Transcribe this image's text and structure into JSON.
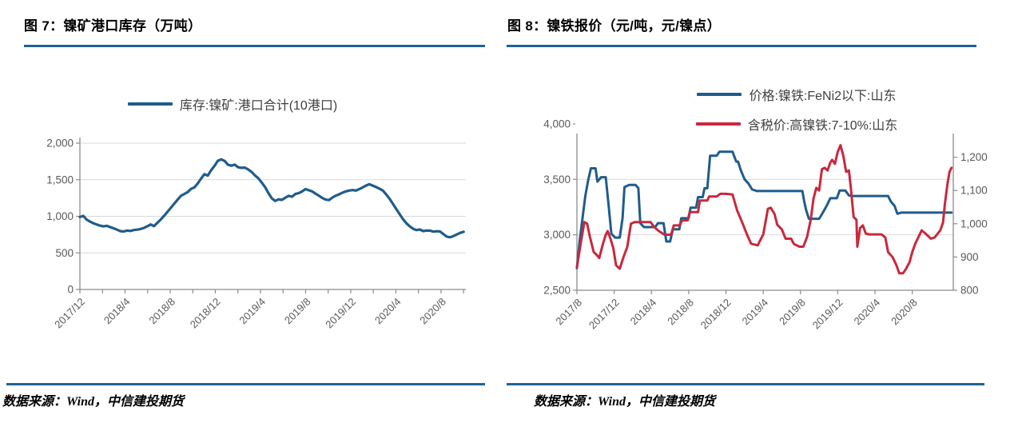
{
  "style": {
    "accent": "#1E6295",
    "grid": "#D9D9D9",
    "axis": "#8C8C8C",
    "tick_label_color": "#595959",
    "background": "#FFFFFF",
    "series_blue": "#1F5C8B",
    "series_red": "#C9283C"
  },
  "figures": [
    {
      "title": "图 7：镍矿港口库存（万吨）",
      "source": "数据来源：Wind，中信建投期货"
    },
    {
      "title": "图 8：镍铁报价（元/吨，元/镍点）",
      "source": "数据来源：Wind，中信建投期货"
    }
  ],
  "chart_data": [
    {
      "type": "line",
      "title": "镍矿港口库存（万吨）",
      "legend_position": "top-center",
      "grid": true,
      "xlim": [
        0,
        34.2
      ],
      "x_unit": "months since 2017/12",
      "x_ticks": [
        {
          "pos": 0,
          "label": "2017/12"
        },
        {
          "pos": 4,
          "label": "2018/4"
        },
        {
          "pos": 8,
          "label": "2018/8"
        },
        {
          "pos": 12,
          "label": "2018/12"
        },
        {
          "pos": 16,
          "label": "2019/4"
        },
        {
          "pos": 20,
          "label": "2019/8"
        },
        {
          "pos": 24,
          "label": "2019/12"
        },
        {
          "pos": 28,
          "label": "2020/4"
        },
        {
          "pos": 32,
          "label": "2020/8"
        }
      ],
      "x_minor_every": 2,
      "axes": {
        "left": {
          "lim": [
            0,
            2000
          ],
          "ticks": [
            0,
            500,
            1000,
            1500,
            2000
          ]
        }
      },
      "series": [
        {
          "name": "库存:镍矿:港口合计(10港口)",
          "id": "inventory-line",
          "color": "#1F5C8B",
          "width": 3.2,
          "axis": "left",
          "x_range": [
            0,
            34
          ],
          "y": [
            990,
            1005,
            955,
            928,
            905,
            888,
            872,
            862,
            870,
            852,
            836,
            818,
            798,
            792,
            806,
            800,
            812,
            818,
            826,
            840,
            862,
            888,
            866,
            910,
            955,
            1005,
            1060,
            1115,
            1170,
            1225,
            1280,
            1305,
            1330,
            1375,
            1395,
            1448,
            1515,
            1575,
            1556,
            1632,
            1690,
            1760,
            1778,
            1756,
            1705,
            1692,
            1706,
            1670,
            1662,
            1666,
            1640,
            1608,
            1560,
            1520,
            1462,
            1400,
            1318,
            1246,
            1210,
            1232,
            1224,
            1252,
            1280,
            1268,
            1305,
            1316,
            1340,
            1372,
            1356,
            1340,
            1310,
            1282,
            1250,
            1228,
            1222,
            1256,
            1282,
            1300,
            1322,
            1340,
            1352,
            1358,
            1352,
            1372,
            1395,
            1420,
            1438,
            1420,
            1400,
            1378,
            1352,
            1300,
            1240,
            1170,
            1100,
            1030,
            960,
            905,
            862,
            830,
            812,
            820,
            798,
            806,
            804,
            790,
            796,
            792,
            756,
            722,
            714,
            730,
            752,
            774,
            788
          ]
        }
      ]
    },
    {
      "type": "line",
      "title": "镍铁报价（元/吨，元/镍点）",
      "legend_position": "top-center",
      "grid": true,
      "xlim": [
        0,
        40.4
      ],
      "x_unit": "months since 2017/8",
      "x_ticks": [
        {
          "pos": 0,
          "label": "2017/8"
        },
        {
          "pos": 4,
          "label": "2017/12"
        },
        {
          "pos": 8,
          "label": "2018/4"
        },
        {
          "pos": 12,
          "label": "2018/8"
        },
        {
          "pos": 16,
          "label": "2018/12"
        },
        {
          "pos": 20,
          "label": "2019/4"
        },
        {
          "pos": 24,
          "label": "2019/8"
        },
        {
          "pos": 28,
          "label": "2019/12"
        },
        {
          "pos": 32,
          "label": "2020/4"
        },
        {
          "pos": 36,
          "label": "2020/8"
        }
      ],
      "x_minor_every": null,
      "axes": {
        "left": {
          "lim": [
            2500,
            4000
          ],
          "ticks": [
            2500,
            3000,
            3500,
            4000
          ]
        },
        "right": {
          "lim": [
            800,
            1300
          ],
          "ticks": [
            800,
            900,
            1000,
            1100,
            1200,
            1300
          ]
        }
      },
      "series": [
        {
          "name": "价格:镍铁:FeNi2以下:山东",
          "id": "feni2-price-line",
          "color": "#1F5C8B",
          "width": 3,
          "axis": "left",
          "x": [
            0,
            0.3,
            0.6,
            0.9,
            1.2,
            1.5,
            2.0,
            2.2,
            2.6,
            3.1,
            3.4,
            3.7,
            4.1,
            4.6,
            4.9,
            5.1,
            5.6,
            6.3,
            6.6,
            6.8,
            7.2,
            8.4,
            8.7,
            9.3,
            9.6,
            10.0,
            10.3,
            11.0,
            11.2,
            12.0,
            12.2,
            12.8,
            13.0,
            13.5,
            13.7,
            14.0,
            14.3,
            15.0,
            15.3,
            16.7,
            17.1,
            17.3,
            17.6,
            18.0,
            18.4,
            18.8,
            19.3,
            19.8,
            24.2,
            24.4,
            24.6,
            24.9,
            26.0,
            26.4,
            26.8,
            27.2,
            27.9,
            28.2,
            28.8,
            29.2,
            29.5,
            33.4,
            33.7,
            34.1,
            34.4,
            34.8,
            40.2
          ],
          "y": [
            2700,
            2950,
            3150,
            3350,
            3490,
            3600,
            3600,
            3480,
            3520,
            3520,
            3270,
            3010,
            2975,
            2975,
            3150,
            3430,
            3450,
            3450,
            3420,
            3105,
            3070,
            3070,
            3105,
            3105,
            2940,
            2940,
            3050,
            3050,
            3150,
            3150,
            3245,
            3245,
            3340,
            3340,
            3420,
            3420,
            3714,
            3714,
            3750,
            3750,
            3660,
            3660,
            3580,
            3500,
            3464,
            3410,
            3395,
            3395,
            3395,
            3300,
            3225,
            3145,
            3145,
            3200,
            3260,
            3330,
            3330,
            3400,
            3400,
            3355,
            3350,
            3350,
            3300,
            3260,
            3190,
            3200,
            3200
          ]
        },
        {
          "name": "含税价:高镍铁:7-10%:山东",
          "id": "high-nickel-price-line",
          "color": "#C9283C",
          "width": 3,
          "axis": "right",
          "x": [
            0,
            0.4,
            0.8,
            1.1,
            1.4,
            1.8,
            2.1,
            2.4,
            2.8,
            3.1,
            3.3,
            3.6,
            3.9,
            4.2,
            4.6,
            5.0,
            5.4,
            5.8,
            6.2,
            7.0,
            7.9,
            8.3,
            8.8,
            9.4,
            10.1,
            10.4,
            11.0,
            11.3,
            11.9,
            12.1,
            13.0,
            13.2,
            14.0,
            14.2,
            15.0,
            15.4,
            16.0,
            16.7,
            17.2,
            17.8,
            18.3,
            18.7,
            19.4,
            20.0,
            20.5,
            20.8,
            21.2,
            21.5,
            22.0,
            22.4,
            23.0,
            23.3,
            23.9,
            24.3,
            24.7,
            25.1,
            25.4,
            25.7,
            26.0,
            26.3,
            26.6,
            26.9,
            27.2,
            27.4,
            27.7,
            28.0,
            28.3,
            28.6,
            28.9,
            29.2,
            29.4,
            29.7,
            30.0,
            30.1,
            30.4,
            30.7,
            31.0,
            31.3,
            32.7,
            33.1,
            33.4,
            33.9,
            34.3,
            34.6,
            35.0,
            35.3,
            35.7,
            36.0,
            36.3,
            37.0,
            37.4,
            38.0,
            38.4,
            39.0,
            39.3,
            39.5,
            39.8,
            40.0,
            40.2
          ],
          "y": [
            870,
            940,
            1005,
            1000,
            960,
            915,
            907,
            897,
            940,
            967,
            978,
            955,
            927,
            875,
            865,
            900,
            930,
            1000,
            1005,
            1005,
            1005,
            990,
            978,
            967,
            967,
            995,
            995,
            1010,
            1010,
            1035,
            1035,
            1070,
            1070,
            1082,
            1082,
            1090,
            1090,
            1088,
            1040,
            1000,
            965,
            940,
            935,
            968,
            1045,
            1048,
            1030,
            997,
            983,
            955,
            955,
            939,
            931,
            931,
            960,
            1012,
            1076,
            1108,
            1100,
            1164,
            1168,
            1160,
            1184,
            1192,
            1180,
            1216,
            1236,
            1204,
            1156,
            1160,
            1108,
            1020,
            1012,
            931,
            987,
            995,
            971,
            968,
            968,
            959,
            915,
            899,
            875,
            851,
            851,
            863,
            884,
            915,
            939,
            980,
            971,
            955,
            959,
            980,
            1004,
            1060,
            1124,
            1156,
            1168
          ]
        }
      ]
    }
  ]
}
